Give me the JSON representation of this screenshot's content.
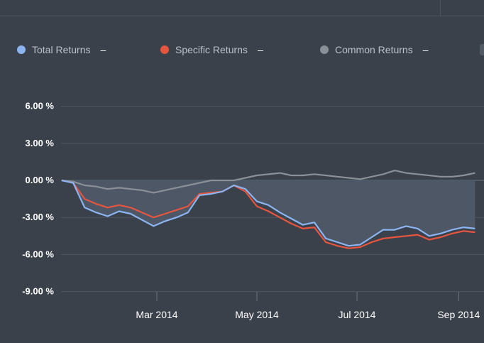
{
  "legend": {
    "items": [
      {
        "label": "Total Returns",
        "color": "#8bb4f0",
        "value": "–"
      },
      {
        "label": "Specific Returns",
        "color": "#e8553f",
        "value": "–"
      },
      {
        "label": "Common Returns",
        "color": "#8a9098",
        "value": "–"
      }
    ]
  },
  "chart_data": {
    "type": "line",
    "title": "",
    "xlabel": "",
    "ylabel": "",
    "ylim": [
      -9,
      6
    ],
    "y_ticks": [
      6,
      3,
      0,
      -3,
      -6,
      -9
    ],
    "y_tick_labels": [
      "6.00 %",
      "3.00 %",
      "0.00 %",
      "-3.00 %",
      "-6.00 %",
      "-9.00 %"
    ],
    "x_tick_labels": [
      "Mar 2014",
      "May 2014",
      "Jul 2014",
      "Sep 2014"
    ],
    "x_ticks": [
      "2014-03-01",
      "2014-05-01",
      "2014-07-01",
      "2014-09-01"
    ],
    "x": [
      "2014-01-02",
      "2014-01-09",
      "2014-01-16",
      "2014-01-23",
      "2014-01-30",
      "2014-02-06",
      "2014-02-13",
      "2014-02-20",
      "2014-02-27",
      "2014-03-06",
      "2014-03-13",
      "2014-03-20",
      "2014-03-27",
      "2014-04-03",
      "2014-04-10",
      "2014-04-17",
      "2014-04-24",
      "2014-05-01",
      "2014-05-08",
      "2014-05-15",
      "2014-05-22",
      "2014-05-29",
      "2014-06-05",
      "2014-06-12",
      "2014-06-19",
      "2014-06-26",
      "2014-07-03",
      "2014-07-10",
      "2014-07-17",
      "2014-07-24",
      "2014-07-31",
      "2014-08-07",
      "2014-08-14",
      "2014-08-21",
      "2014-08-28",
      "2014-09-04",
      "2014-09-11"
    ],
    "series": [
      {
        "name": "Total Returns",
        "color": "#8bb4f0",
        "values": [
          0.0,
          -0.2,
          -2.2,
          -2.6,
          -2.9,
          -2.5,
          -2.7,
          -3.2,
          -3.7,
          -3.3,
          -3.0,
          -2.6,
          -1.2,
          -1.1,
          -0.9,
          -0.4,
          -0.7,
          -1.7,
          -2.0,
          -2.6,
          -3.1,
          -3.6,
          -3.4,
          -4.7,
          -5.0,
          -5.3,
          -5.2,
          -4.6,
          -4.0,
          -4.0,
          -3.7,
          -3.9,
          -4.5,
          -4.3,
          -4.0,
          -3.8,
          -3.9
        ]
      },
      {
        "name": "Specific Returns",
        "color": "#e8553f",
        "values": [
          0.0,
          -0.2,
          -1.5,
          -1.9,
          -2.2,
          -2.0,
          -2.2,
          -2.6,
          -3.0,
          -2.7,
          -2.4,
          -2.1,
          -1.1,
          -1.0,
          -0.9,
          -0.4,
          -0.9,
          -2.1,
          -2.5,
          -3.0,
          -3.5,
          -3.9,
          -3.8,
          -5.0,
          -5.3,
          -5.5,
          -5.4,
          -5.0,
          -4.7,
          -4.6,
          -4.5,
          -4.4,
          -4.8,
          -4.6,
          -4.3,
          -4.1,
          -4.2
        ]
      },
      {
        "name": "Common Returns",
        "color": "#8a9098",
        "values": [
          0.0,
          -0.1,
          -0.4,
          -0.5,
          -0.7,
          -0.6,
          -0.7,
          -0.8,
          -1.0,
          -0.8,
          -0.6,
          -0.4,
          -0.2,
          0.0,
          0.0,
          0.0,
          0.2,
          0.4,
          0.5,
          0.6,
          0.4,
          0.4,
          0.5,
          0.4,
          0.3,
          0.2,
          0.1,
          0.3,
          0.5,
          0.8,
          0.6,
          0.5,
          0.4,
          0.3,
          0.3,
          0.4,
          0.6
        ]
      }
    ],
    "grid": true,
    "legend_position": "top"
  }
}
